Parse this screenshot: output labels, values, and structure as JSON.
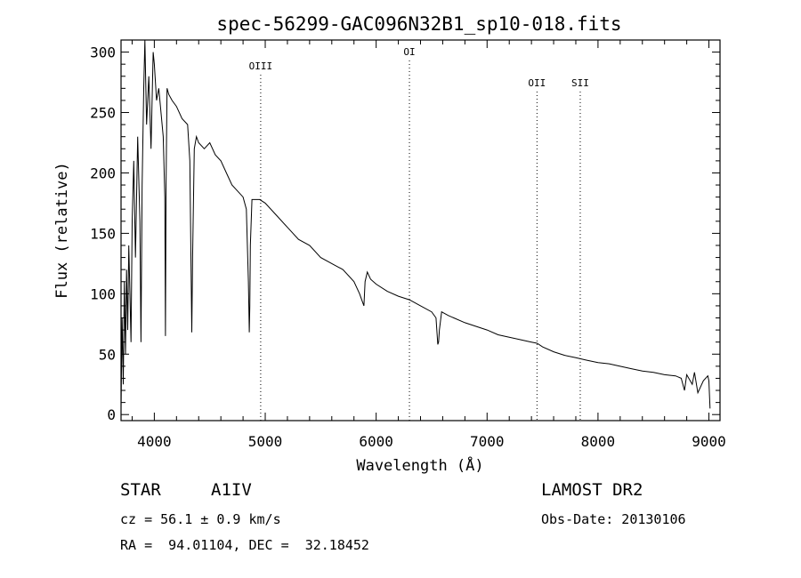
{
  "chart_data": {
    "type": "line",
    "title": "spec-56299-GAC096N32B1_sp10-018.fits",
    "xlabel": "Wavelength (Å)",
    "ylabel": "Flux (relative)",
    "xlim": [
      3700,
      9100
    ],
    "ylim": [
      -5,
      310
    ],
    "xticks": [
      4000,
      5000,
      6000,
      7000,
      8000,
      9000
    ],
    "yticks": [
      0,
      50,
      100,
      150,
      200,
      250,
      300
    ],
    "grid": false,
    "lines": [
      {
        "label": "OIII",
        "x": 4959
      },
      {
        "label": "OI",
        "x": 6300
      },
      {
        "label": "OII",
        "x": 7450
      },
      {
        "label": "SII",
        "x": 7840
      }
    ],
    "series": [
      {
        "x": [
          3700,
          3710,
          3720,
          3730,
          3740,
          3750,
          3760,
          3770,
          3780,
          3790,
          3800,
          3815,
          3830,
          3850,
          3870,
          3880,
          3890,
          3905,
          3915,
          3930,
          3950,
          3970,
          3990,
          4000,
          4020,
          4040,
          4060,
          4080,
          4095,
          4100,
          4106,
          4115,
          4130,
          4160,
          4200,
          4250,
          4300,
          4320,
          4338,
          4345,
          4360,
          4380,
          4400,
          4450,
          4500,
          4550,
          4600,
          4650,
          4700,
          4750,
          4800,
          4830,
          4848,
          4856,
          4861,
          4866,
          4880,
          4900,
          4950,
          5000,
          5100,
          5200,
          5300,
          5400,
          5500,
          5600,
          5700,
          5800,
          5850,
          5870,
          5890,
          5900,
          5920,
          5950,
          6000,
          6100,
          6200,
          6300,
          6400,
          6500,
          6540,
          6556,
          6563,
          6570,
          6590,
          6650,
          6700,
          6800,
          6900,
          7000,
          7100,
          7200,
          7300,
          7400,
          7450,
          7500,
          7600,
          7700,
          7800,
          7900,
          8000,
          8100,
          8200,
          8300,
          8400,
          8500,
          8600,
          8700,
          8750,
          8780,
          8800,
          8850,
          8870,
          8900,
          8950,
          8990,
          9000,
          9010
        ],
        "y": [
          5,
          80,
          25,
          110,
          50,
          120,
          70,
          140,
          100,
          60,
          160,
          210,
          130,
          230,
          160,
          60,
          190,
          270,
          320,
          240,
          280,
          220,
          300,
          290,
          260,
          270,
          250,
          230,
          180,
          65,
          190,
          270,
          265,
          260,
          255,
          245,
          240,
          210,
          68,
          130,
          220,
          230,
          225,
          220,
          225,
          215,
          210,
          200,
          190,
          185,
          180,
          170,
          110,
          68,
          90,
          140,
          178,
          178,
          178,
          175,
          165,
          155,
          145,
          140,
          130,
          125,
          120,
          110,
          100,
          95,
          90,
          110,
          118,
          112,
          108,
          102,
          98,
          95,
          90,
          85,
          80,
          58,
          60,
          70,
          85,
          82,
          80,
          76,
          73,
          70,
          66,
          64,
          62,
          60,
          59,
          56,
          52,
          49,
          47,
          45,
          43,
          42,
          40,
          38,
          36,
          35,
          33,
          32,
          30,
          20,
          33,
          25,
          35,
          18,
          28,
          32,
          28,
          5
        ]
      }
    ]
  },
  "info": {
    "object_class": "STAR",
    "subclass": "A1IV",
    "survey": "LAMOST DR2",
    "redshift": "cz = 56.1 ± 0.9 km/s",
    "obs_date": "Obs-Date: 20130106",
    "coords": "RA =  94.01104, DEC =  32.18452"
  }
}
